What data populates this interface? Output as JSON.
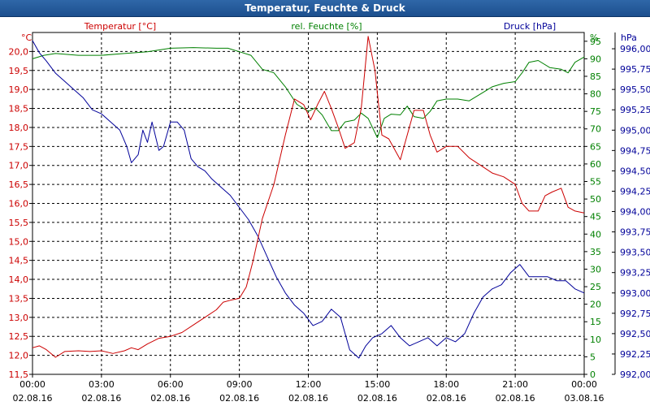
{
  "window": {
    "title": "Temperatur, Feuchte & Druck"
  },
  "colors": {
    "temperature": "#cc0000",
    "humidity": "#008000",
    "pressure": "#000099",
    "axis_left_label": "#cc0000",
    "axis_h_label": "#008000",
    "axis_p_label": "#000099",
    "grid": "#000000"
  },
  "chart_data": {
    "type": "line",
    "title": "Temperatur, Feuchte & Druck",
    "x_tick_labels": [
      [
        "00:00",
        "02.08.16"
      ],
      [
        "03:00",
        "02.08.16"
      ],
      [
        "06:00",
        "02.08.16"
      ],
      [
        "09:00",
        "02.08.16"
      ],
      [
        "12:00",
        "02.08.16"
      ],
      [
        "15:00",
        "02.08.16"
      ],
      [
        "18:00",
        "02.08.16"
      ],
      [
        "21:00",
        "02.08.16"
      ],
      [
        "00:00",
        "03.08.16"
      ]
    ],
    "xlim_hours": [
      0,
      24
    ],
    "series_labels": {
      "temperature": "Temperatur [°C]",
      "humidity": "rel. Feuchte [%]",
      "pressure": "Druck [hPa]"
    },
    "axis_units": {
      "temperature": "°C",
      "humidity": "%",
      "pressure": "hPa"
    },
    "axes": {
      "temperature": {
        "ylim": [
          11.5,
          20.5
        ],
        "ticks": [
          "11,5",
          "12,0",
          "12,5",
          "13,0",
          "13,5",
          "14,0",
          "14,5",
          "15,0",
          "15,5",
          "16,0",
          "16,5",
          "17,0",
          "17,5",
          "18,0",
          "18,5",
          "19,0",
          "19,5",
          "20,0"
        ]
      },
      "humidity": {
        "ylim": [
          0,
          97.5
        ],
        "ticks": [
          "0",
          "5",
          "10",
          "15",
          "20",
          "25",
          "30",
          "35",
          "40",
          "45",
          "50",
          "55",
          "60",
          "65",
          "70",
          "75",
          "80",
          "85",
          "90",
          "95"
        ]
      },
      "pressure": {
        "ylim": [
          992.0,
          996.2
        ],
        "ticks": [
          "992,00",
          "992,25",
          "992,50",
          "992,75",
          "993,00",
          "993,25",
          "993,50",
          "993,75",
          "994,00",
          "994,25",
          "994,50",
          "994,75",
          "995,00",
          "995,25",
          "995,50",
          "995,75",
          "996,00"
        ]
      }
    },
    "series": [
      {
        "name": "Temperatur [°C]",
        "axis": "temperature",
        "x": [
          0,
          0.3,
          0.6,
          1.0,
          1.4,
          2.0,
          2.5,
          3.0,
          3.5,
          4.0,
          4.3,
          4.6,
          5.0,
          5.5,
          6.0,
          6.5,
          7.0,
          7.5,
          8.0,
          8.3,
          8.6,
          9.0,
          9.3,
          9.6,
          10.0,
          10.5,
          11.0,
          11.4,
          11.8,
          12.1,
          12.4,
          12.7,
          13.0,
          13.3,
          13.6,
          14.0,
          14.3,
          14.6,
          14.9,
          15.2,
          15.5,
          16.0,
          16.3,
          16.6,
          17.0,
          17.3,
          17.6,
          18.0,
          18.5,
          19.0,
          19.5,
          20.0,
          20.5,
          21.0,
          21.3,
          21.6,
          22.0,
          22.3,
          22.6,
          23.0,
          23.3,
          23.6,
          24.0
        ],
        "values": [
          12.2,
          12.25,
          12.15,
          11.95,
          12.1,
          12.12,
          12.1,
          12.12,
          12.05,
          12.12,
          12.2,
          12.15,
          12.3,
          12.45,
          12.5,
          12.6,
          12.8,
          13.0,
          13.2,
          13.4,
          13.45,
          13.5,
          13.8,
          14.5,
          15.6,
          16.5,
          17.8,
          18.75,
          18.6,
          18.2,
          18.6,
          18.95,
          18.5,
          18.0,
          17.45,
          17.6,
          18.5,
          20.4,
          19.5,
          17.8,
          17.7,
          17.15,
          17.8,
          18.45,
          18.45,
          17.8,
          17.35,
          17.5,
          17.5,
          17.2,
          17.0,
          16.8,
          16.7,
          16.5,
          16.0,
          15.8,
          15.8,
          16.2,
          16.3,
          16.4,
          15.9,
          15.8,
          15.75
        ]
      },
      {
        "name": "rel. Feuchte [%]",
        "axis": "humidity",
        "x": [
          0,
          0.5,
          1.0,
          2.0,
          3.0,
          4.0,
          5.0,
          6.0,
          7.0,
          8.0,
          8.5,
          9.0,
          9.5,
          10.0,
          10.5,
          11.0,
          11.5,
          12.0,
          12.3,
          12.6,
          13.0,
          13.3,
          13.6,
          14.0,
          14.3,
          14.6,
          15.0,
          15.3,
          15.6,
          16.0,
          16.3,
          16.6,
          17.0,
          17.3,
          17.6,
          18.0,
          18.5,
          19.0,
          19.5,
          20.0,
          20.5,
          21.0,
          21.3,
          21.6,
          22.0,
          22.5,
          23.0,
          23.3,
          23.6,
          24.0
        ],
        "values": [
          90,
          91,
          91.5,
          91,
          91,
          91.5,
          92,
          93,
          93.2,
          93,
          93,
          92,
          91,
          87,
          86,
          82,
          77,
          75,
          76,
          74,
          69.5,
          69.5,
          72,
          72.5,
          74.5,
          73,
          67.5,
          73,
          74.2,
          74,
          76.5,
          73.5,
          73,
          75,
          78,
          78.5,
          78.5,
          78,
          80,
          82,
          83,
          83.5,
          86,
          89,
          89.5,
          87.5,
          87,
          86,
          89,
          90.5
        ]
      },
      {
        "name": "Druck [hPa]",
        "axis": "pressure",
        "x": [
          0,
          0.3,
          0.6,
          1.0,
          1.4,
          1.8,
          2.2,
          2.6,
          3.0,
          3.4,
          3.8,
          4.1,
          4.3,
          4.6,
          4.8,
          5.0,
          5.2,
          5.5,
          5.7,
          6.0,
          6.3,
          6.6,
          6.9,
          7.2,
          7.5,
          7.8,
          8.2,
          8.6,
          9.0,
          9.4,
          9.8,
          10.2,
          10.6,
          11.0,
          11.4,
          11.8,
          12.2,
          12.6,
          13.0,
          13.4,
          13.8,
          14.2,
          14.5,
          14.8,
          15.2,
          15.6,
          16.0,
          16.4,
          16.8,
          17.2,
          17.6,
          18.0,
          18.4,
          18.8,
          19.2,
          19.6,
          20.0,
          20.4,
          20.8,
          21.2,
          21.6,
          22.0,
          22.4,
          22.8,
          23.2,
          23.6,
          24.0
        ],
        "values": [
          996.1,
          995.95,
          995.85,
          995.7,
          995.6,
          995.5,
          995.4,
          995.25,
          995.2,
          995.1,
          995.0,
          994.8,
          994.6,
          994.7,
          995.0,
          994.85,
          995.1,
          994.75,
          994.8,
          995.1,
          995.1,
          995.0,
          994.65,
          994.55,
          994.5,
          994.4,
          994.3,
          994.2,
          994.05,
          993.9,
          993.7,
          993.45,
          993.2,
          993.0,
          992.85,
          992.75,
          992.6,
          992.65,
          992.8,
          992.7,
          992.3,
          992.2,
          992.35,
          992.45,
          992.5,
          992.6,
          992.45,
          992.35,
          992.4,
          992.45,
          992.35,
          992.45,
          992.4,
          992.5,
          992.75,
          992.95,
          993.05,
          993.1,
          993.25,
          993.35,
          993.2,
          993.2,
          993.2,
          993.15,
          993.15,
          993.05,
          993.0
        ]
      }
    ]
  }
}
